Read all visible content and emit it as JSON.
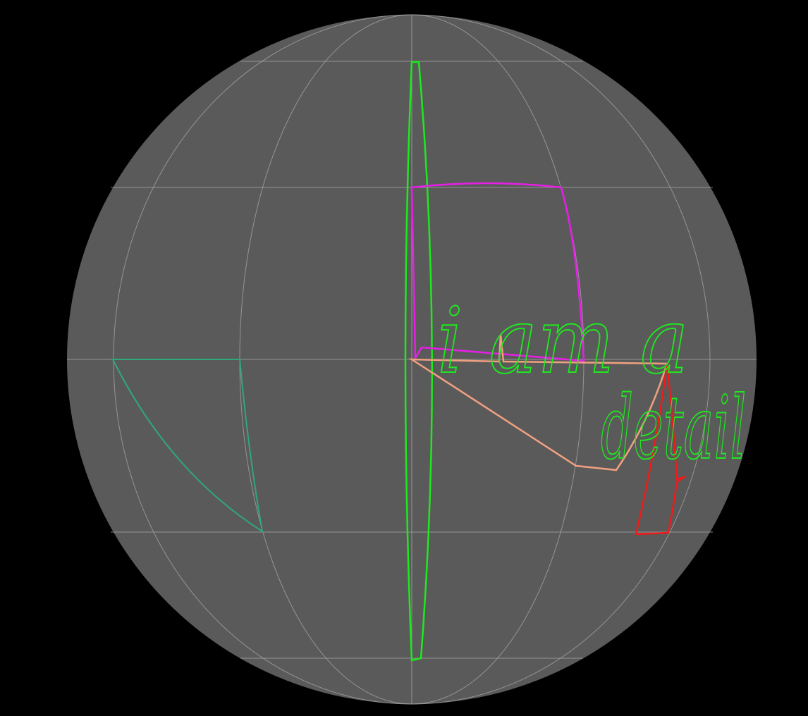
{
  "colors": {
    "background": "#000000",
    "globe_fill": "#5a5a5a",
    "graticule": "#a8a8a8",
    "green": "#1fe81f",
    "magenta": "#e81ee8",
    "salmon": "#f0a080",
    "red": "#ee1b1b",
    "teal": "#2fa87a"
  },
  "annotations": {
    "line1": "i am a",
    "line2": "detail"
  }
}
